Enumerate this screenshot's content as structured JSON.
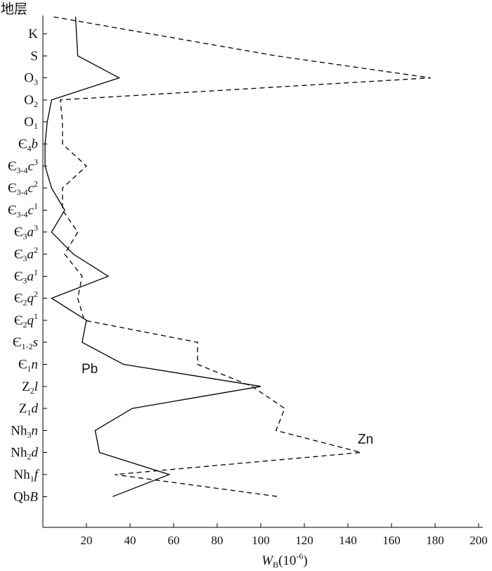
{
  "chart_data": {
    "type": "line",
    "orientation": "horizontal-value",
    "ylabel_title": "地层",
    "xlabel_parts": {
      "main": "W",
      "sub": "B",
      "unit": "(10",
      "exp": "-6",
      "close": ")"
    },
    "xlim": [
      0,
      200
    ],
    "xticks": [
      20,
      40,
      60,
      80,
      100,
      120,
      140,
      160,
      180,
      200
    ],
    "categories": [
      [
        {
          "t": "K"
        }
      ],
      [
        {
          "t": "S"
        }
      ],
      [
        {
          "t": "O"
        },
        {
          "t": "3",
          "s": "sub"
        }
      ],
      [
        {
          "t": "O"
        },
        {
          "t": "2",
          "s": "sub"
        }
      ],
      [
        {
          "t": "O"
        },
        {
          "t": "1",
          "s": "sub"
        }
      ],
      [
        {
          "t": "Є"
        },
        {
          "t": "4",
          "s": "sub"
        },
        {
          "t": "b",
          "s": "it"
        }
      ],
      [
        {
          "t": "Є"
        },
        {
          "t": "3-4",
          "s": "sub"
        },
        {
          "t": "c",
          "s": "it"
        },
        {
          "t": "3",
          "s": "sup"
        }
      ],
      [
        {
          "t": "Є"
        },
        {
          "t": "3-4",
          "s": "sub"
        },
        {
          "t": "c",
          "s": "it"
        },
        {
          "t": "2",
          "s": "sup"
        }
      ],
      [
        {
          "t": "Є"
        },
        {
          "t": "3-4",
          "s": "sub"
        },
        {
          "t": "c",
          "s": "it"
        },
        {
          "t": "1",
          "s": "sup"
        }
      ],
      [
        {
          "t": "Є"
        },
        {
          "t": "3",
          "s": "sub"
        },
        {
          "t": "a",
          "s": "it"
        },
        {
          "t": "3",
          "s": "sup"
        }
      ],
      [
        {
          "t": "Є"
        },
        {
          "t": "3",
          "s": "sub"
        },
        {
          "t": "a",
          "s": "it"
        },
        {
          "t": "2",
          "s": "sup"
        }
      ],
      [
        {
          "t": "Є"
        },
        {
          "t": "3",
          "s": "sub"
        },
        {
          "t": "a",
          "s": "it"
        },
        {
          "t": "1",
          "s": "sup"
        }
      ],
      [
        {
          "t": "Є"
        },
        {
          "t": "2",
          "s": "sub"
        },
        {
          "t": "q",
          "s": "it"
        },
        {
          "t": "2",
          "s": "sup"
        }
      ],
      [
        {
          "t": "Є"
        },
        {
          "t": "2",
          "s": "sub"
        },
        {
          "t": "q",
          "s": "it"
        },
        {
          "t": "1",
          "s": "sup"
        }
      ],
      [
        {
          "t": "Є"
        },
        {
          "t": "1-2",
          "s": "sub"
        },
        {
          "t": "s",
          "s": "it"
        }
      ],
      [
        {
          "t": "Є"
        },
        {
          "t": "1",
          "s": "sub"
        },
        {
          "t": "n",
          "s": "it"
        }
      ],
      [
        {
          "t": "Z"
        },
        {
          "t": "2",
          "s": "sub"
        },
        {
          "t": "l",
          "s": "it"
        }
      ],
      [
        {
          "t": "Z"
        },
        {
          "t": "1",
          "s": "sub"
        },
        {
          "t": "d",
          "s": "it"
        }
      ],
      [
        {
          "t": "Nh"
        },
        {
          "t": "3",
          "s": "sub"
        },
        {
          "t": "n",
          "s": "it"
        }
      ],
      [
        {
          "t": "Nh"
        },
        {
          "t": "2",
          "s": "sub"
        },
        {
          "t": "d",
          "s": "it"
        }
      ],
      [
        {
          "t": "Nh"
        },
        {
          "t": "1",
          "s": "sub"
        },
        {
          "t": "f",
          "s": "it"
        }
      ],
      [
        {
          "t": "Qb"
        },
        {
          "t": "B",
          "s": "it"
        }
      ]
    ],
    "series": [
      {
        "name": "Pb",
        "style": "solid",
        "color": "#000000",
        "values": [
          15,
          16,
          35,
          4,
          2,
          1,
          1,
          4,
          10,
          4,
          14,
          30,
          4,
          20,
          18,
          37,
          100,
          41,
          24,
          26,
          58,
          32
        ]
      },
      {
        "name": "Zn",
        "style": "dashed",
        "color": "#000000",
        "values": [
          5,
          107,
          178,
          8,
          9,
          9,
          20,
          9,
          9,
          16,
          10,
          18,
          16,
          19,
          71,
          71,
          96,
          111,
          107,
          146,
          33,
          108
        ]
      }
    ]
  }
}
